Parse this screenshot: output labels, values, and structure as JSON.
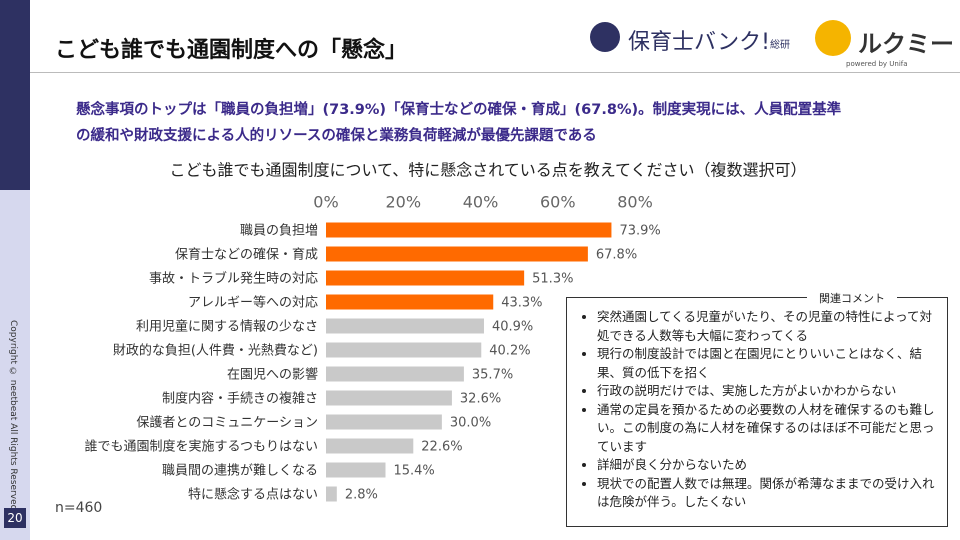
{
  "slide": {
    "title": "こども誰でも通園制度への「懸念」",
    "logo_main": "保育士バンク!",
    "logo_sub": "総研",
    "logo_second": "ルクミー",
    "logo_second_sub": "powered by Unifa",
    "summary": [
      "懸念事項のトップは「職員の負担増」(73.9%)「保育士などの確保・育成」(67.8%)。制度実現には、人員配置基準",
      "の緩和や財政支援による人的リソースの確保と業務負荷軽減が最優先課題である"
    ],
    "note": "n=460",
    "copyright": "Copyright © neetbeat All Rights Reserved.",
    "page_number": "20",
    "comments_title": "関連コメント",
    "comments": [
      "突然通園してくる児童がいたり、その児童の特性によって対処できる人数等も大幅に変わってくる",
      "現行の制度設計では園と在園児にとりいいことはなく、結果、質の低下を招く",
      "行政の説明だけでは、実施した方がよいかわからない",
      "通常の定員を預かるための必要数の人材を確保するのも難しい。この制度の為に人材を確保するのはほぼ不可能だと思っています",
      "詳細が良く分からないため",
      "現状での配置人数では無理。関係が希薄なままでの受け入れは危険が伴う。したくない"
    ]
  },
  "chart_data": {
    "type": "barh",
    "title": "こども誰でも通園制度について、特に懸念されている点を教えてください（複数選択可）",
    "categories": [
      "職員の負担増",
      "保育士などの確保・育成",
      "事故・トラブル発生時の対応",
      "アレルギー等への対応",
      "利用児童に関する情報の少なさ",
      "財政的な負担(人件費・光熱費など)",
      "在園児への影響",
      "制度内容・手続きの複雑さ",
      "保護者とのコミュニケーション",
      "誰でも通園制度を実施するつもりはない",
      "職員間の連携が難しくなる",
      "特に懸念する点はない"
    ],
    "values": [
      73.9,
      67.8,
      51.3,
      43.3,
      40.9,
      40.2,
      35.7,
      32.6,
      30.0,
      22.6,
      15.4,
      2.8
    ],
    "value_labels": [
      "73.9%",
      "67.8%",
      "51.3%",
      "43.3%",
      "40.9%",
      "40.2%",
      "35.7%",
      "32.6%",
      "30.0%",
      "22.6%",
      "15.4%",
      "2.8%"
    ],
    "colors": [
      "#ff6a00",
      "#ff6a00",
      "#ff6a00",
      "#ff6a00",
      "#c9c9c9",
      "#c9c9c9",
      "#c9c9c9",
      "#c9c9c9",
      "#c9c9c9",
      "#c9c9c9",
      "#c9c9c9",
      "#c9c9c9"
    ],
    "xlim": [
      0,
      80
    ],
    "xticks": [
      {
        "value": 0,
        "label": "0%"
      },
      {
        "value": 20,
        "label": "20%"
      },
      {
        "value": 40,
        "label": "40%"
      },
      {
        "value": 60,
        "label": "60%"
      },
      {
        "value": 80,
        "label": "80%"
      }
    ],
    "grid": false
  }
}
